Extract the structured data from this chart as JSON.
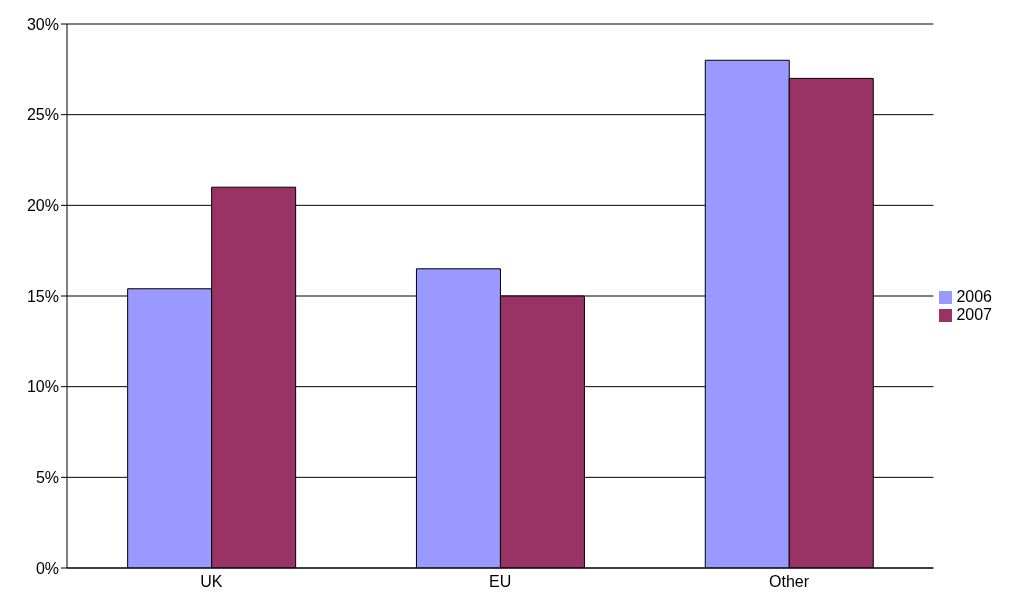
{
  "chart_data": {
    "type": "bar",
    "categories": [
      "UK",
      "EU",
      "Other"
    ],
    "series": [
      {
        "name": "2006",
        "color": "#9999ff",
        "values": [
          15.4,
          16.5,
          28
        ]
      },
      {
        "name": "2007",
        "color": "#993366",
        "values": [
          21,
          15,
          27
        ]
      }
    ],
    "ylim": [
      0,
      30
    ],
    "yticks": [
      {
        "value": 0,
        "label": "0%"
      },
      {
        "value": 5,
        "label": "5%"
      },
      {
        "value": 10,
        "label": "10%"
      },
      {
        "value": 15,
        "label": "15%"
      },
      {
        "value": 20,
        "label": "20%"
      },
      {
        "value": 25,
        "label": "25%"
      },
      {
        "value": 30,
        "label": "30%"
      }
    ],
    "grid": "y",
    "legend": "right"
  }
}
